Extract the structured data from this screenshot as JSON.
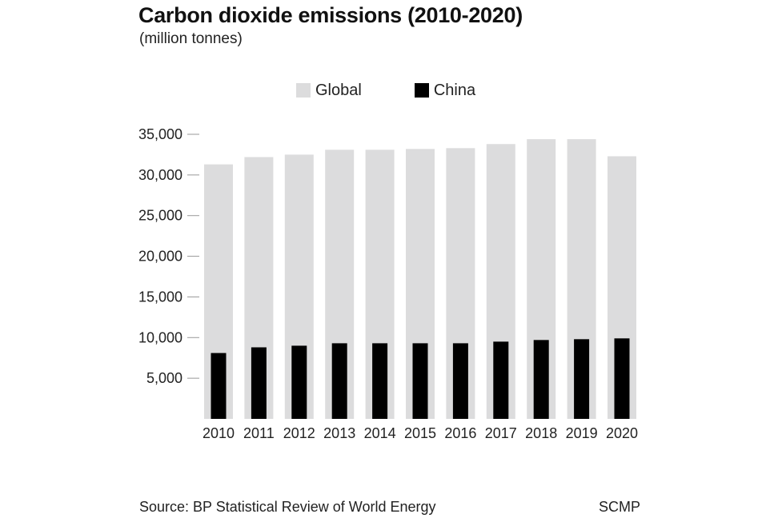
{
  "colors": {
    "global": "#dcdcdd",
    "china": "#000000",
    "text": "#222222",
    "grid": "#999999"
  },
  "footer": {
    "source": "Source: BP Statistical Review of World Energy",
    "brand": "SCMP"
  },
  "chart_data": {
    "type": "bar",
    "title": "Carbon dioxide emissions (2010-2020)",
    "subtitle": "(million tonnes)",
    "categories": [
      "2010",
      "2011",
      "2012",
      "2013",
      "2014",
      "2015",
      "2016",
      "2017",
      "2018",
      "2019",
      "2020"
    ],
    "series": [
      {
        "name": "Global",
        "color": "#dcdcdd",
        "values": [
          31300,
          32200,
          32500,
          33100,
          33100,
          33200,
          33300,
          33800,
          34400,
          34400,
          32300
        ]
      },
      {
        "name": "China",
        "color": "#000000",
        "values": [
          8100,
          8800,
          9000,
          9300,
          9300,
          9300,
          9300,
          9500,
          9700,
          9800,
          9900
        ]
      }
    ],
    "bars_overlap": true,
    "ylim": [
      0,
      35000
    ],
    "yticks": [
      {
        "value": 5000,
        "label": "5,000"
      },
      {
        "value": 10000,
        "label": "10,000"
      },
      {
        "value": 15000,
        "label": "15,000"
      },
      {
        "value": 20000,
        "label": "20,000"
      },
      {
        "value": 25000,
        "label": "25,000"
      },
      {
        "value": 30000,
        "label": "30,000"
      },
      {
        "value": 35000,
        "label": "35,000"
      }
    ],
    "grid": false,
    "legend_position": "top-center"
  }
}
